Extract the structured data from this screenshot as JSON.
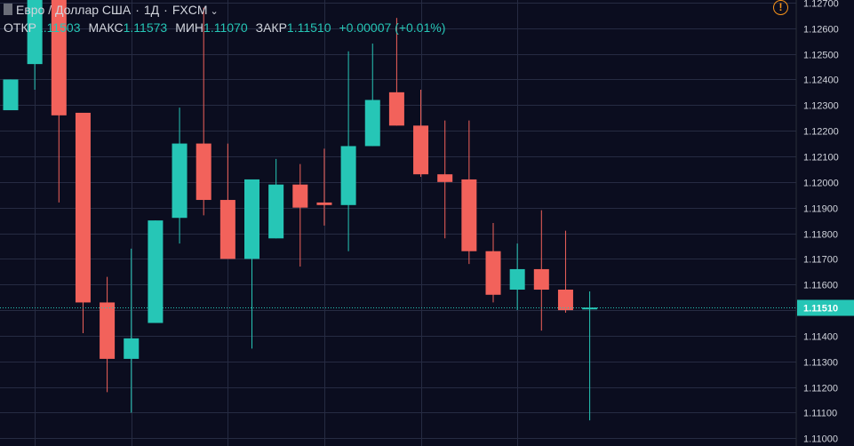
{
  "legend": {
    "symbol_title": "Евро / Доллар США",
    "interval": "1Д",
    "exchange": "FXCM",
    "open_label": "ОТКР",
    "open_value": "1.11503",
    "high_label": "МАКС",
    "high_value": "1.11573",
    "low_label": "МИН",
    "low_value": "1.11070",
    "close_label": "ЗАКР",
    "close_value": "1.11510",
    "change_value": "+0.00007 (+0.01%)"
  },
  "last_price_label": "1.11510",
  "colors": {
    "background": "#0b0d1f",
    "up": "#26c6b6",
    "down": "#f2625b",
    "grid": "#262b42",
    "axis_text": "#d1d4dc",
    "warning": "#f7931a"
  },
  "icons": {
    "warning": "warning-circle-icon",
    "chevron": "chevron-down-icon"
  },
  "chart_data": {
    "type": "candlestick",
    "y_range": [
      1.1097,
      1.1271
    ],
    "y_ticks": [
      "1.11000",
      "1.11100",
      "1.11200",
      "1.11300",
      "1.11400",
      "1.11500",
      "1.11600",
      "1.11700",
      "1.11800",
      "1.11900",
      "1.12000",
      "1.12100",
      "1.12200",
      "1.12300",
      "1.12400",
      "1.12500",
      "1.12600",
      "1.12700"
    ],
    "last_price": 1.1151,
    "candles": [
      {
        "open": 1.1228,
        "high": 1.124,
        "low": 1.1228,
        "close": 1.124
      },
      {
        "open": 1.1246,
        "high": 1.1271,
        "low": 1.1236,
        "close": 1.1271
      },
      {
        "open": 1.1271,
        "high": 1.1271,
        "low": 1.1192,
        "close": 1.1226
      },
      {
        "open": 1.1227,
        "high": 1.1227,
        "low": 1.1141,
        "close": 1.1153
      },
      {
        "open": 1.1153,
        "high": 1.1163,
        "low": 1.1118,
        "close": 1.1131
      },
      {
        "open": 1.1131,
        "high": 1.1174,
        "low": 1.111,
        "close": 1.1139
      },
      {
        "open": 1.1145,
        "high": 1.1185,
        "low": 1.1145,
        "close": 1.1185
      },
      {
        "open": 1.1186,
        "high": 1.1229,
        "low": 1.1176,
        "close": 1.1215
      },
      {
        "open": 1.1215,
        "high": 1.1268,
        "low": 1.1187,
        "close": 1.1193
      },
      {
        "open": 1.1193,
        "high": 1.1215,
        "low": 1.117,
        "close": 1.117
      },
      {
        "open": 1.117,
        "high": 1.1201,
        "low": 1.1135,
        "close": 1.1201
      },
      {
        "open": 1.1178,
        "high": 1.1209,
        "low": 1.1178,
        "close": 1.1199
      },
      {
        "open": 1.1199,
        "high": 1.1207,
        "low": 1.1167,
        "close": 1.119
      },
      {
        "open": 1.1192,
        "high": 1.1213,
        "low": 1.1183,
        "close": 1.1191
      },
      {
        "open": 1.1191,
        "high": 1.1251,
        "low": 1.1173,
        "close": 1.1214
      },
      {
        "open": 1.1214,
        "high": 1.1254,
        "low": 1.1214,
        "close": 1.1232
      },
      {
        "open": 1.1235,
        "high": 1.1264,
        "low": 1.1222,
        "close": 1.1222
      },
      {
        "open": 1.1222,
        "high": 1.1236,
        "low": 1.1202,
        "close": 1.1203
      },
      {
        "open": 1.1203,
        "high": 1.1224,
        "low": 1.1178,
        "close": 1.12
      },
      {
        "open": 1.1201,
        "high": 1.1224,
        "low": 1.1168,
        "close": 1.1173
      },
      {
        "open": 1.1173,
        "high": 1.1184,
        "low": 1.1153,
        "close": 1.1156
      },
      {
        "open": 1.1158,
        "high": 1.1176,
        "low": 1.115,
        "close": 1.1166
      },
      {
        "open": 1.1166,
        "high": 1.1189,
        "low": 1.1142,
        "close": 1.1158
      },
      {
        "open": 1.1158,
        "high": 1.1181,
        "low": 1.1149,
        "close": 1.115
      },
      {
        "open": 1.11503,
        "high": 1.11573,
        "low": 1.1107,
        "close": 1.1151
      }
    ]
  }
}
